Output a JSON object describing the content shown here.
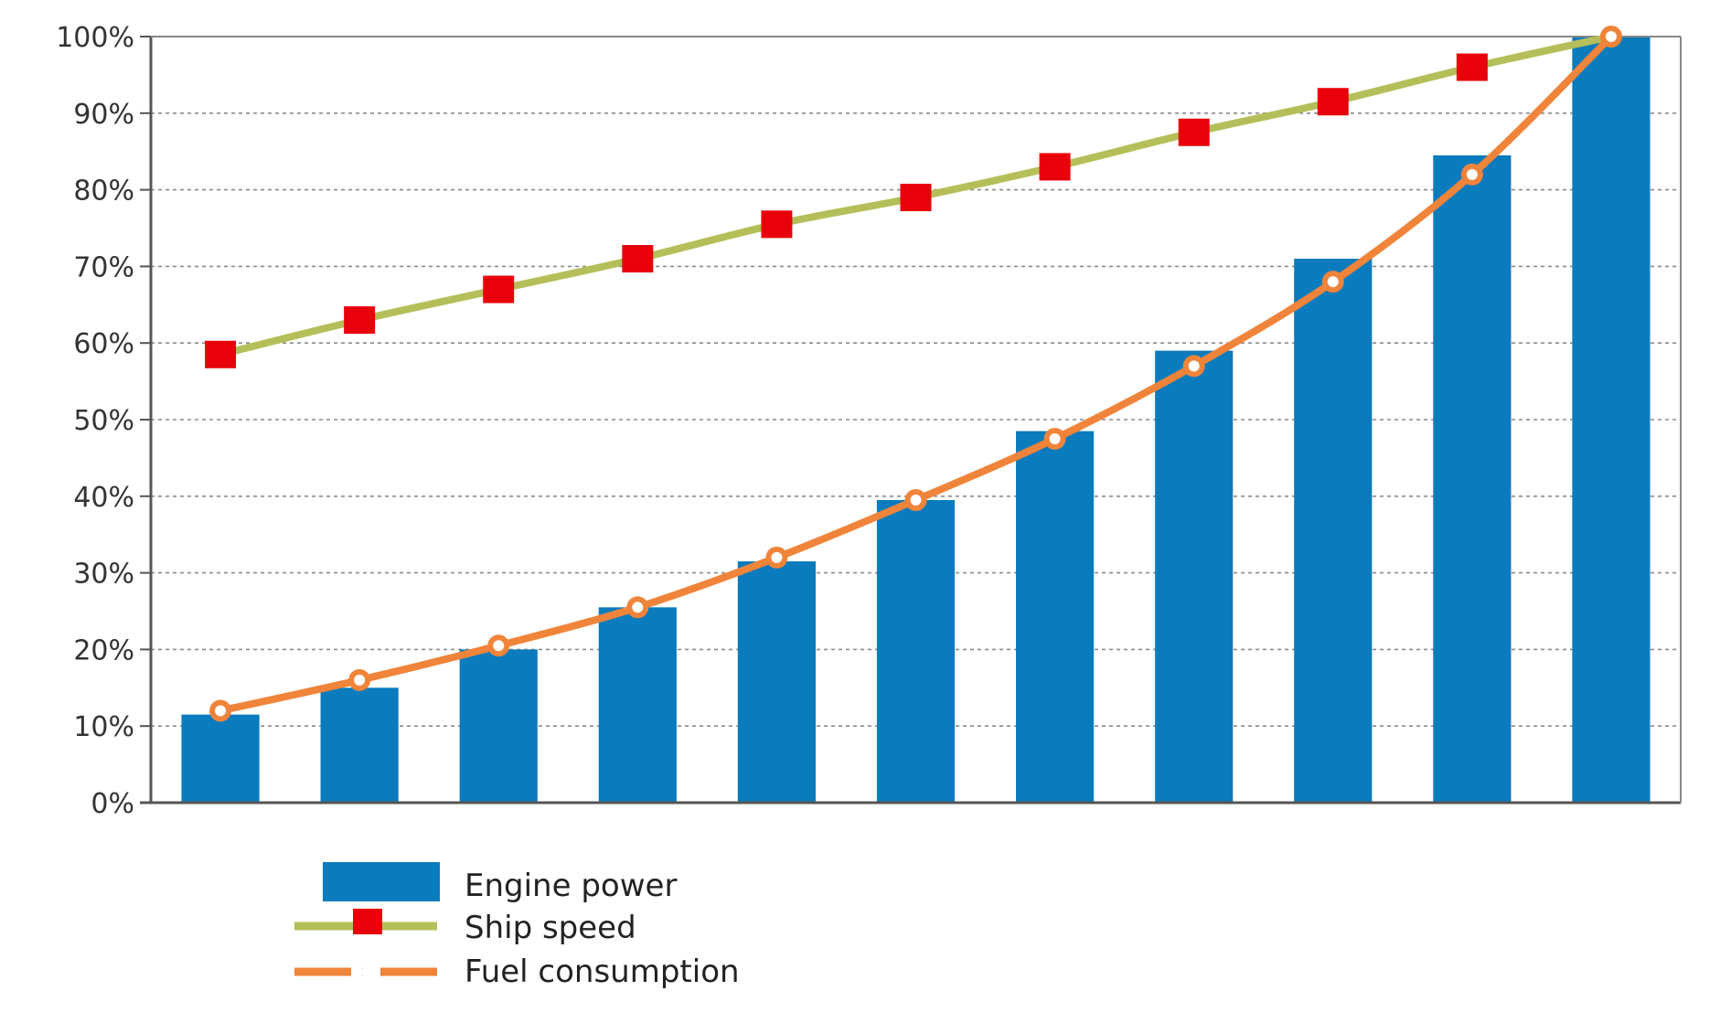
{
  "chart_data": {
    "type": "bar",
    "title": "",
    "xlabel": "",
    "ylabel": "",
    "ylim": [
      0,
      100
    ],
    "yticks": [
      0,
      10,
      20,
      30,
      40,
      50,
      60,
      70,
      80,
      90,
      100
    ],
    "ytick_labels": [
      "0%",
      "10%",
      "20%",
      "30%",
      "40%",
      "50%",
      "60%",
      "70%",
      "80%",
      "90%",
      "100%"
    ],
    "grid": true,
    "legend_position": "bottom-left",
    "series": [
      {
        "name": "Engine power",
        "type": "bar",
        "color": "#0a7bbd",
        "values": [
          11.5,
          15,
          20,
          25.5,
          31.5,
          39.5,
          48.5,
          59,
          71,
          84.5,
          100
        ]
      },
      {
        "name": "Ship speed",
        "type": "line",
        "color": "#b5bf5a",
        "marker": "square",
        "marker_color": "#e8000b",
        "values": [
          58.5,
          63,
          67,
          71,
          75.5,
          79,
          83,
          87.5,
          91.5,
          96,
          100
        ]
      },
      {
        "name": "Fuel consumption",
        "type": "line",
        "color": "#f0843a",
        "marker": "circle",
        "values": [
          12,
          16,
          20.5,
          25.5,
          32,
          39.5,
          47.5,
          57,
          68,
          82,
          100
        ]
      }
    ]
  }
}
